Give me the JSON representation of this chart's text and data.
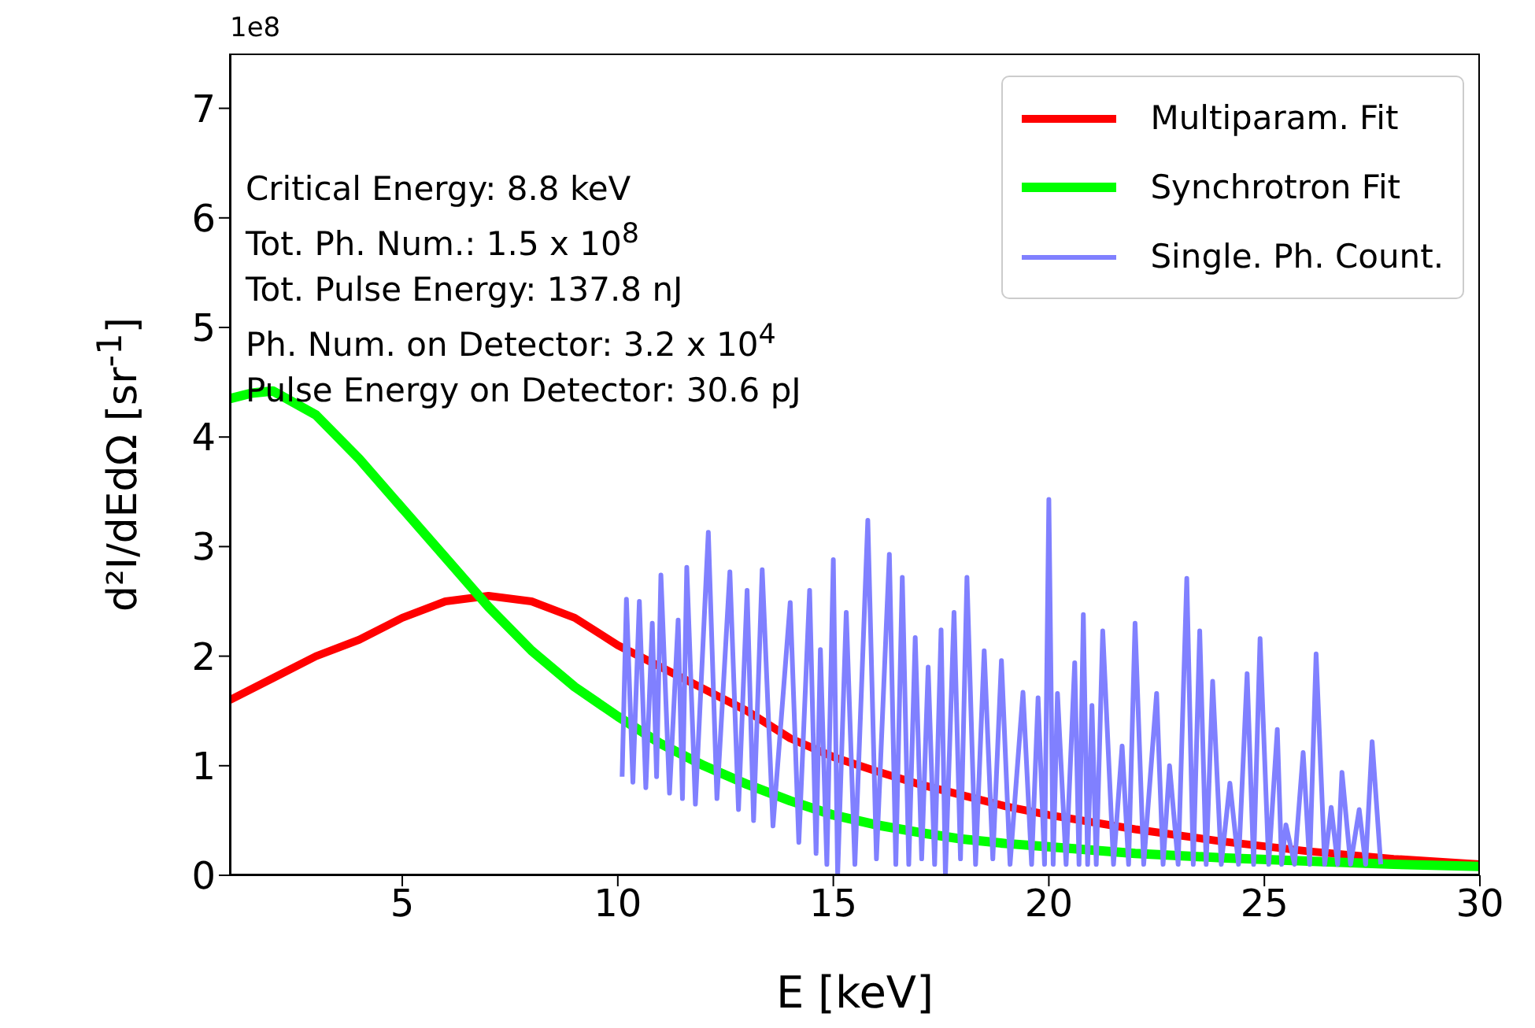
{
  "chart_data": {
    "type": "line",
    "xlabel": "E [keV]",
    "ylabel": "d²I/dEdΩ [sr$^{-1}$]",
    "xlim": [
      1,
      30
    ],
    "xticks": [
      5,
      10,
      15,
      20,
      25,
      30
    ],
    "ylim": [
      0,
      7.5
    ],
    "yticks": [
      0,
      1,
      2,
      3,
      4,
      5,
      6,
      7
    ],
    "grid": false,
    "legend": "top right",
    "marker": "none",
    "line_style": "solid",
    "annotations": [
      "1e8",
      "Critical Energy: 8.8 keV",
      "Tot. Ph. Num.: 1.5 x 10$^{8}$",
      "Tot. Pulse Energy: 137.8 nJ",
      "Ph. Num. on Detector: 3.2 x 10$^{4}$",
      "Pulse Energy on Detector: 30.6 pJ"
    ],
    "series": [
      {
        "name": "Single. Ph. Count.",
        "color": "#8080ff",
        "x": [
          10.1,
          10.2,
          10.35,
          10.5,
          10.65,
          10.8,
          10.9,
          11.0,
          11.2,
          11.4,
          11.5,
          11.6,
          11.8,
          12.1,
          12.3,
          12.6,
          12.8,
          13.0,
          13.15,
          13.35,
          13.6,
          14.0,
          14.2,
          14.45,
          14.6,
          14.7,
          14.85,
          15.0,
          15.1,
          15.3,
          15.5,
          15.8,
          16.0,
          16.3,
          16.45,
          16.6,
          16.75,
          16.9,
          17.05,
          17.2,
          17.35,
          17.5,
          17.6,
          17.8,
          17.95,
          18.1,
          18.3,
          18.5,
          18.7,
          18.9,
          19.1,
          19.4,
          19.6,
          19.75,
          19.9,
          20.0,
          20.1,
          20.2,
          20.4,
          20.6,
          20.7,
          20.8,
          20.9,
          21.0,
          21.1,
          21.25,
          21.5,
          21.7,
          21.85,
          22.0,
          22.2,
          22.5,
          22.65,
          22.8,
          23.0,
          23.2,
          23.35,
          23.5,
          23.65,
          23.8,
          24.0,
          24.2,
          24.4,
          24.6,
          24.75,
          24.9,
          25.1,
          25.3,
          25.4,
          25.5,
          25.7,
          25.9,
          26.05,
          26.2,
          26.4,
          26.55,
          26.7,
          26.8,
          27.0,
          27.2,
          27.35,
          27.5,
          27.7
        ],
        "values": [
          0.9,
          2.52,
          0.85,
          2.5,
          0.8,
          2.3,
          0.9,
          2.74,
          0.75,
          2.33,
          0.7,
          2.81,
          0.65,
          3.13,
          0.7,
          2.77,
          0.6,
          2.6,
          0.5,
          2.79,
          0.45,
          2.49,
          0.3,
          2.6,
          0.2,
          2.06,
          0.1,
          2.88,
          0.0,
          2.4,
          0.1,
          3.24,
          0.15,
          2.93,
          0.1,
          2.72,
          0.1,
          2.17,
          0.15,
          1.9,
          0.1,
          2.24,
          0.0,
          2.4,
          0.15,
          2.72,
          0.1,
          2.05,
          0.15,
          1.96,
          0.1,
          1.67,
          0.1,
          1.62,
          0.1,
          3.43,
          0.1,
          1.66,
          0.1,
          1.94,
          0.1,
          2.38,
          0.1,
          1.55,
          0.1,
          2.23,
          0.1,
          1.18,
          0.1,
          2.3,
          0.1,
          1.66,
          0.1,
          1.0,
          0.1,
          2.71,
          0.1,
          2.23,
          0.1,
          1.77,
          0.1,
          0.84,
          0.1,
          1.84,
          0.1,
          2.16,
          0.1,
          1.33,
          0.1,
          0.46,
          0.1,
          1.12,
          0.1,
          2.02,
          0.1,
          0.62,
          0.1,
          0.94,
          0.1,
          0.6,
          0.1,
          1.22,
          0.1
        ]
      },
      {
        "name": "Multiparam. Fit",
        "color": "#ff0000",
        "x": [
          1,
          2,
          3,
          4,
          5,
          6,
          7,
          8,
          9,
          10,
          11,
          12,
          13,
          14,
          15,
          16,
          17,
          18,
          19,
          20,
          22,
          24,
          26,
          28,
          30
        ],
        "values": [
          1.6,
          1.8,
          2.0,
          2.15,
          2.35,
          2.5,
          2.55,
          2.5,
          2.35,
          2.1,
          1.9,
          1.7,
          1.5,
          1.25,
          1.08,
          0.95,
          0.83,
          0.73,
          0.63,
          0.55,
          0.42,
          0.31,
          0.22,
          0.15,
          0.1
        ]
      },
      {
        "name": "Synchrotron Fit",
        "color": "#00ff00",
        "x": [
          1,
          1.5,
          2,
          3,
          4,
          5,
          6,
          7,
          8,
          9,
          10,
          11,
          12,
          13,
          14,
          15,
          16,
          17,
          18,
          19,
          20,
          22,
          24,
          26,
          28,
          30
        ],
        "values": [
          4.35,
          4.4,
          4.42,
          4.2,
          3.8,
          3.35,
          2.9,
          2.45,
          2.05,
          1.72,
          1.45,
          1.2,
          1.0,
          0.83,
          0.68,
          0.55,
          0.46,
          0.39,
          0.33,
          0.29,
          0.26,
          0.2,
          0.16,
          0.13,
          0.1,
          0.08
        ]
      }
    ]
  }
}
